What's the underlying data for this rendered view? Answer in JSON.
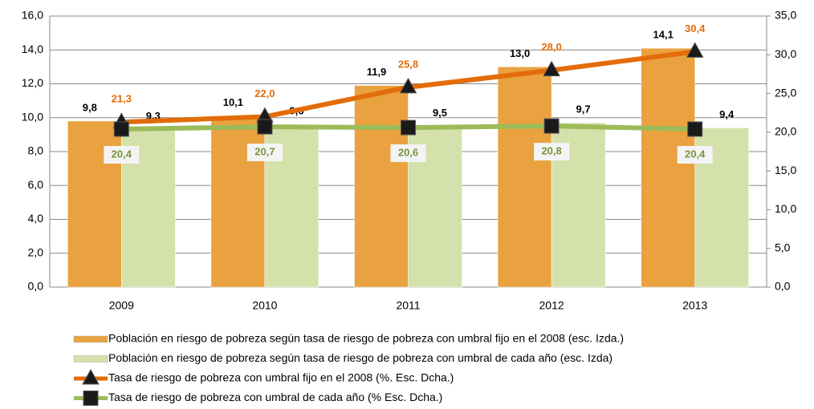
{
  "chart_data": {
    "type": "bar",
    "categories": [
      "2009",
      "2010",
      "2011",
      "2012",
      "2013"
    ],
    "series": [
      {
        "name": "Población en riesgo de pobreza según tasa de riesgo de pobreza con umbral fijo en el 2008 (esc. Izda.)",
        "type": "bar",
        "color": "#E9A23F",
        "values": [
          9.8,
          10.1,
          11.9,
          13.0,
          14.1
        ],
        "value_labels": [
          "9,8",
          "10,1",
          "11,9",
          "13,0",
          "14,1"
        ]
      },
      {
        "name": "Población en riesgo de pobreza según tasa de riesgo de pobreza con umbral de cada año (esc. Izda)",
        "type": "bar",
        "color": "#D5E1AA",
        "values": [
          9.3,
          9.6,
          9.5,
          9.7,
          9.4
        ],
        "value_labels": [
          "9,3",
          "9,6",
          "9,5",
          "9,7",
          "9,4"
        ]
      },
      {
        "name": "Tasa de riesgo de pobreza con umbral fijo en el 2008 (%. Esc. Dcha.)",
        "type": "line",
        "axis": "y2",
        "color": "#E36C0A",
        "marker": "triangle",
        "values": [
          21.3,
          22.0,
          25.8,
          28.0,
          30.4
        ],
        "value_labels": [
          "21,3",
          "22,0",
          "25,8",
          "28,0",
          "30,4"
        ]
      },
      {
        "name": "Tasa de riesgo de pobreza con umbral de cada año (% Esc. Dcha.)",
        "type": "line",
        "axis": "y2",
        "color": "#9BBB59",
        "marker": "square",
        "values": [
          20.4,
          20.7,
          20.6,
          20.8,
          20.4
        ],
        "value_labels": [
          "20,4",
          "20,7",
          "20,6",
          "20,8",
          "20,4"
        ]
      }
    ],
    "ylim": [
      0,
      16
    ],
    "yticks": [
      {
        "value": 0,
        "label": "0,0"
      },
      {
        "value": 2,
        "label": "2,0"
      },
      {
        "value": 4,
        "label": "4,0"
      },
      {
        "value": 6,
        "label": "6,0"
      },
      {
        "value": 8,
        "label": "8,0"
      },
      {
        "value": 10,
        "label": "10,0"
      },
      {
        "value": 12,
        "label": "12,0"
      },
      {
        "value": 14,
        "label": "14,0"
      },
      {
        "value": 16,
        "label": "16,0"
      }
    ],
    "y2lim": [
      0,
      35
    ],
    "y2ticks": [
      {
        "value": 0,
        "label": "0,0"
      },
      {
        "value": 5,
        "label": "5,0"
      },
      {
        "value": 10,
        "label": "10,0"
      },
      {
        "value": 15,
        "label": "15,0"
      },
      {
        "value": 20,
        "label": "20,0"
      },
      {
        "value": 25,
        "label": "25,0"
      },
      {
        "value": 30,
        "label": "30,0"
      },
      {
        "value": 35,
        "label": "35,0"
      }
    ],
    "grid": true,
    "legend": "bottom"
  }
}
